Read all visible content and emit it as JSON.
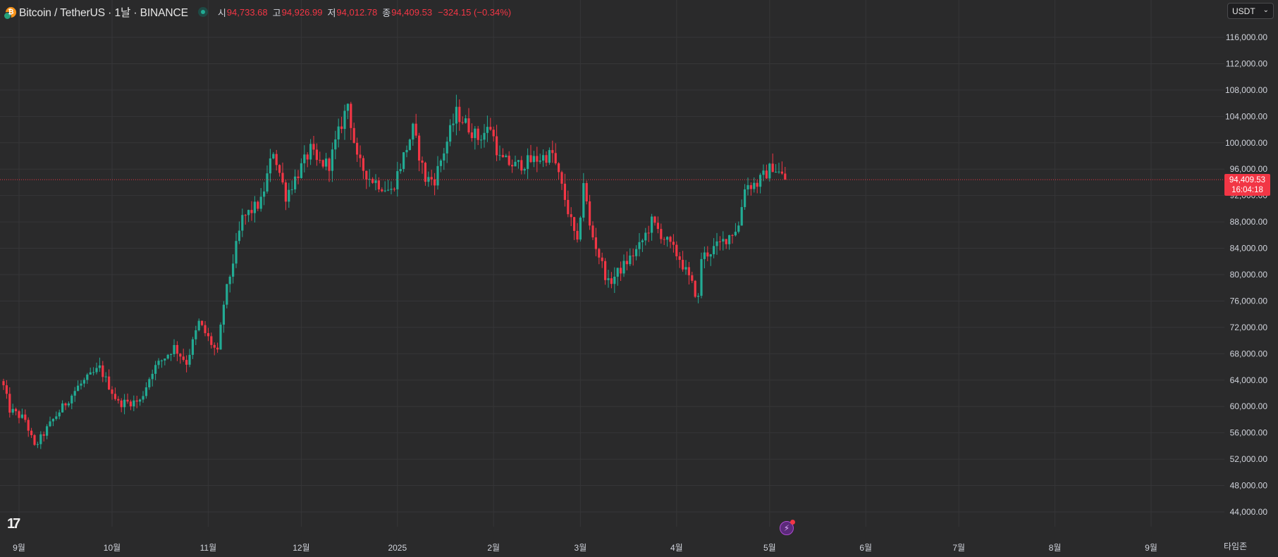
{
  "header": {
    "title": "Bitcoin / TetherUS · 1날 · BINANCE",
    "open_label": "시",
    "open": "94,733.68",
    "high_label": "고",
    "high": "94,926.99",
    "low_label": "저",
    "low": "94,012.78",
    "close_label": "종",
    "close": "94,409.53",
    "change": "−324.15 (−0.34%)"
  },
  "currency_select": {
    "value": "USDT"
  },
  "footer": {
    "timezone_label": "타임존"
  },
  "price_badge": {
    "price": "94,409.53",
    "countdown": "16:04:18"
  },
  "colors": {
    "up": "#22ab94",
    "down": "#f23645",
    "background": "#2a2a2b",
    "grid": "#363638",
    "text": "#d1d4dc"
  },
  "chart_data": {
    "type": "candlestick",
    "current_price": 94409.53,
    "ylim": [
      42000,
      118000
    ],
    "y_ticks": [
      44000,
      48000,
      52000,
      56000,
      60000,
      64000,
      68000,
      72000,
      76000,
      80000,
      84000,
      88000,
      92000,
      96000,
      100000,
      104000,
      108000,
      112000,
      116000
    ],
    "y_tick_labels": [
      "44,000.00",
      "48,000.00",
      "52,000.00",
      "56,000.00",
      "60,000.00",
      "64,000.00",
      "68,000.00",
      "72,000.00",
      "76,000.00",
      "80,000.00",
      "84,000.00",
      "88,000.00",
      "92,000.00",
      "96,000.00",
      "100,000.00",
      "104,000.00",
      "108,000.00",
      "112,000.00",
      "116,000.00"
    ],
    "x_ticks": [
      {
        "label": "9월",
        "date": "2024-09-01"
      },
      {
        "label": "10월",
        "date": "2024-10-01"
      },
      {
        "label": "11월",
        "date": "2024-11-01"
      },
      {
        "label": "12월",
        "date": "2024-12-01"
      },
      {
        "label": "2025",
        "date": "2025-01-01"
      },
      {
        "label": "2월",
        "date": "2025-02-01"
      },
      {
        "label": "3월",
        "date": "2025-03-01"
      },
      {
        "label": "4월",
        "date": "2025-04-01"
      },
      {
        "label": "5월",
        "date": "2025-05-01"
      },
      {
        "label": "6월",
        "date": "2025-06-01"
      },
      {
        "label": "7월",
        "date": "2025-07-01"
      },
      {
        "label": "8월",
        "date": "2025-08-01"
      },
      {
        "label": "9월",
        "date": "2025-09-01"
      }
    ],
    "series_start_date": "2024-08-27",
    "series_end_date": "2025-05-06",
    "anchors": [
      [
        "2024-08-27",
        63000
      ],
      [
        "2024-08-29",
        59500
      ],
      [
        "2024-09-03",
        58000
      ],
      [
        "2024-09-06",
        53800
      ],
      [
        "2024-09-12",
        58000
      ],
      [
        "2024-09-20",
        63000
      ],
      [
        "2024-09-27",
        65800
      ],
      [
        "2024-10-03",
        60500
      ],
      [
        "2024-10-10",
        60800
      ],
      [
        "2024-10-14",
        65500
      ],
      [
        "2024-10-21",
        69000
      ],
      [
        "2024-10-25",
        66700
      ],
      [
        "2024-10-29",
        72700
      ],
      [
        "2024-11-04",
        68000
      ],
      [
        "2024-11-06",
        75600
      ],
      [
        "2024-11-12",
        88500
      ],
      [
        "2024-11-18",
        91000
      ],
      [
        "2024-11-22",
        98900
      ],
      [
        "2024-11-26",
        92000
      ],
      [
        "2024-12-04",
        98900
      ],
      [
        "2024-12-06",
        97000
      ],
      [
        "2024-12-10",
        96800
      ],
      [
        "2024-12-16",
        106000
      ],
      [
        "2024-12-19",
        97300
      ],
      [
        "2024-12-23",
        94700
      ],
      [
        "2024-12-30",
        92600
      ],
      [
        "2025-01-06",
        102000
      ],
      [
        "2025-01-10",
        94500
      ],
      [
        "2025-01-13",
        94500
      ],
      [
        "2025-01-20",
        104500
      ],
      [
        "2025-01-22",
        103500
      ],
      [
        "2025-01-27",
        100700
      ],
      [
        "2025-01-31",
        102400
      ],
      [
        "2025-02-03",
        97500
      ],
      [
        "2025-02-08",
        96500
      ],
      [
        "2025-02-20",
        98300
      ],
      [
        "2025-02-24",
        91500
      ],
      [
        "2025-02-28",
        84400
      ],
      [
        "2025-03-02",
        94200
      ],
      [
        "2025-03-04",
        87200
      ],
      [
        "2025-03-10",
        78600
      ],
      [
        "2025-03-20",
        84200
      ],
      [
        "2025-03-24",
        88000
      ],
      [
        "2025-04-02",
        82500
      ],
      [
        "2025-04-06",
        78400
      ],
      [
        "2025-04-08",
        76300
      ],
      [
        "2025-04-09",
        82600
      ],
      [
        "2025-04-15",
        84600
      ],
      [
        "2025-04-21",
        87400
      ],
      [
        "2025-04-23",
        93500
      ],
      [
        "2025-04-27",
        93800
      ],
      [
        "2025-05-02",
        96500
      ],
      [
        "2025-05-06",
        94409
      ]
    ]
  }
}
